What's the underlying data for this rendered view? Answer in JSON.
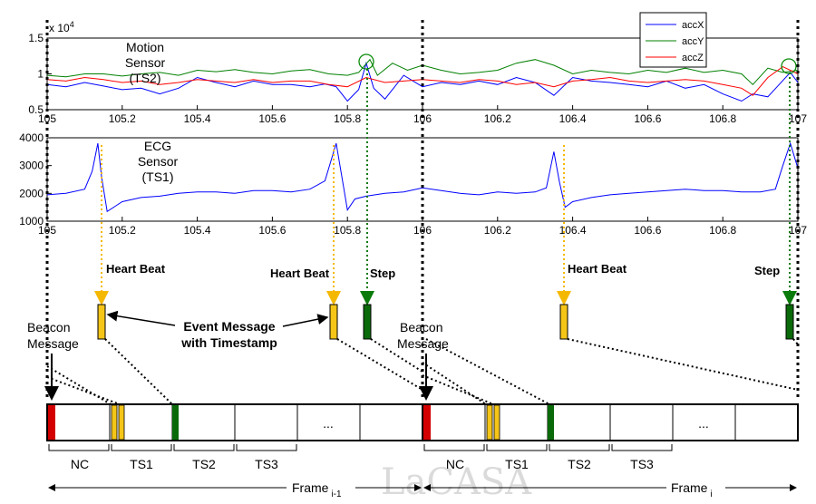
{
  "top_plot": {
    "label_lines": [
      "Motion",
      "Sensor",
      "(TS2)"
    ],
    "exponent": "x 10",
    "exponent_power": "4",
    "y_ticks": [
      "1.5",
      "1",
      "0.5"
    ],
    "x_ticks": [
      "105",
      "105.2",
      "105.4",
      "105.6",
      "105.8",
      "106",
      "106.2",
      "106.4",
      "106.6",
      "106.8",
      "107"
    ],
    "legend": [
      {
        "name": "accX",
        "color": "#0000ff"
      },
      {
        "name": "accY",
        "color": "#008000"
      },
      {
        "name": "accZ",
        "color": "#ff0000"
      }
    ]
  },
  "bottom_plot": {
    "label_lines": [
      "ECG",
      "Sensor",
      "(TS1)"
    ],
    "y_ticks": [
      "4000",
      "3000",
      "2000",
      "1000"
    ],
    "x_ticks": [
      "105",
      "105.2",
      "105.4",
      "105.6",
      "105.8",
      "106",
      "106.2",
      "106.4",
      "106.6",
      "106.8",
      "107"
    ]
  },
  "chart_data": [
    {
      "type": "line",
      "xlim": [
        105,
        107
      ],
      "ylim": [
        0.5,
        1.5
      ],
      "y_multiplier": "x 10^4",
      "series": [
        {
          "name": "accX",
          "color": "#0000ff",
          "x": [
            105.0,
            105.05,
            105.1,
            105.15,
            105.2,
            105.25,
            105.3,
            105.35,
            105.4,
            105.45,
            105.5,
            105.55,
            105.6,
            105.65,
            105.7,
            105.74,
            105.77,
            105.8,
            105.83,
            105.85,
            105.87,
            105.9,
            105.95,
            106.0,
            106.05,
            106.1,
            106.15,
            106.2,
            106.25,
            106.3,
            106.35,
            106.4,
            106.45,
            106.5,
            106.55,
            106.6,
            106.65,
            106.7,
            106.75,
            106.8,
            106.85,
            106.88,
            106.92,
            106.95,
            106.98,
            107.0
          ],
          "y": [
            0.85,
            0.82,
            0.88,
            0.83,
            0.78,
            0.8,
            0.72,
            0.8,
            0.95,
            0.88,
            0.82,
            0.9,
            0.85,
            0.85,
            0.82,
            0.86,
            0.82,
            0.62,
            0.78,
            1.15,
            0.8,
            0.65,
            0.98,
            0.82,
            0.88,
            0.85,
            0.9,
            0.85,
            0.95,
            0.88,
            0.7,
            0.95,
            0.9,
            0.88,
            0.85,
            0.82,
            0.9,
            0.8,
            0.85,
            0.72,
            0.62,
            0.72,
            0.68,
            0.85,
            1.02,
            0.88
          ]
        },
        {
          "name": "accY",
          "color": "#008000",
          "x": [
            105.0,
            105.05,
            105.1,
            105.15,
            105.2,
            105.25,
            105.3,
            105.35,
            105.4,
            105.45,
            105.5,
            105.55,
            105.6,
            105.65,
            105.7,
            105.75,
            105.8,
            105.83,
            105.86,
            105.88,
            105.92,
            105.96,
            106.0,
            106.05,
            106.1,
            106.15,
            106.2,
            106.25,
            106.3,
            106.35,
            106.4,
            106.45,
            106.5,
            106.55,
            106.6,
            106.65,
            106.7,
            106.75,
            106.8,
            106.85,
            106.88,
            106.92,
            106.96,
            107.0
          ],
          "y": [
            0.98,
            0.96,
            1.0,
            1.0,
            0.97,
            1.0,
            1.02,
            0.98,
            1.05,
            1.03,
            1.06,
            1.02,
            1.0,
            1.04,
            1.06,
            1.0,
            0.98,
            1.02,
            1.2,
            0.98,
            1.15,
            1.05,
            1.12,
            1.05,
            1.0,
            1.02,
            1.05,
            1.15,
            1.2,
            1.12,
            1.0,
            1.05,
            1.02,
            1.0,
            1.05,
            1.02,
            1.08,
            1.02,
            1.05,
            1.0,
            0.85,
            1.08,
            1.02,
            1.05
          ]
        },
        {
          "name": "accZ",
          "color": "#ff0000",
          "x": [
            105.0,
            105.05,
            105.1,
            105.15,
            105.2,
            105.25,
            105.3,
            105.35,
            105.4,
            105.45,
            105.5,
            105.55,
            105.6,
            105.65,
            105.7,
            105.75,
            105.8,
            105.85,
            105.9,
            105.95,
            106.0,
            106.05,
            106.1,
            106.15,
            106.2,
            106.25,
            106.3,
            106.35,
            106.4,
            106.45,
            106.5,
            106.55,
            106.6,
            106.65,
            106.7,
            106.75,
            106.8,
            106.85,
            106.88,
            106.92,
            106.96,
            107.0
          ],
          "y": [
            0.92,
            0.9,
            0.95,
            0.92,
            0.88,
            0.9,
            0.85,
            0.88,
            0.92,
            0.9,
            0.88,
            0.92,
            0.88,
            0.9,
            0.9,
            0.85,
            0.82,
            0.95,
            0.88,
            0.9,
            0.92,
            0.9,
            0.88,
            0.92,
            0.9,
            0.85,
            0.88,
            0.82,
            0.9,
            0.92,
            0.95,
            0.9,
            0.88,
            0.9,
            0.92,
            0.9,
            0.85,
            0.8,
            0.7,
            0.95,
            1.1,
            1.0
          ]
        }
      ]
    },
    {
      "type": "line",
      "xlim": [
        105,
        107
      ],
      "ylim": [
        1000,
        4000
      ],
      "series": [
        {
          "color": "#0000ff",
          "x": [
            105.0,
            105.05,
            105.1,
            105.12,
            105.135,
            105.145,
            105.16,
            105.2,
            105.25,
            105.3,
            105.35,
            105.4,
            105.45,
            105.5,
            105.55,
            105.6,
            105.65,
            105.7,
            105.74,
            105.77,
            105.79,
            105.8,
            105.82,
            105.85,
            105.9,
            105.95,
            106.0,
            106.05,
            106.1,
            106.15,
            106.2,
            106.25,
            106.3,
            106.33,
            106.35,
            106.365,
            106.38,
            106.4,
            106.45,
            106.5,
            106.55,
            106.6,
            106.65,
            106.7,
            106.75,
            106.8,
            106.85,
            106.9,
            106.94,
            106.96,
            106.98,
            107.0
          ],
          "y": [
            1950,
            2000,
            2150,
            2800,
            3800,
            2600,
            1350,
            1700,
            1850,
            1900,
            2000,
            2050,
            2050,
            2000,
            2100,
            2100,
            2050,
            2150,
            2450,
            3800,
            2200,
            1400,
            1800,
            1900,
            2000,
            2050,
            2200,
            2100,
            2000,
            1950,
            2050,
            2000,
            2050,
            2200,
            3500,
            2400,
            1500,
            1700,
            1850,
            1950,
            2000,
            2050,
            2100,
            2150,
            2100,
            2100,
            2050,
            2050,
            2150,
            3000,
            3800,
            2900
          ]
        }
      ]
    }
  ],
  "annotations": {
    "heart_beat": "Heart Beat",
    "step": "Step",
    "event_message_lines": [
      "Event Message",
      "with Timestamp"
    ],
    "beacon_lines": [
      "Beacon",
      "Message"
    ],
    "slots": [
      "NC",
      "TS1",
      "TS2",
      "TS3"
    ],
    "ellipsis": "...",
    "frame_prev": "Frame",
    "frame_prev_sub": "i-1",
    "frame_cur": "Frame",
    "frame_cur_sub": "i",
    "watermark": "LaCASA"
  }
}
